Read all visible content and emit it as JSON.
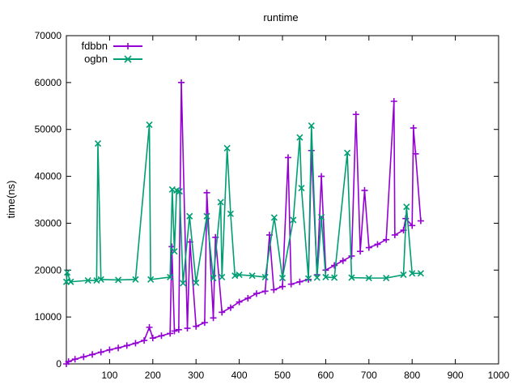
{
  "chart_data": {
    "type": "line",
    "title": "runtime",
    "xlabel": "",
    "ylabel": "time(ns)",
    "xlim": [
      0,
      1000
    ],
    "ylim": [
      0,
      70000
    ],
    "xticks": [
      100,
      200,
      300,
      400,
      500,
      600,
      700,
      800,
      900,
      1000
    ],
    "yticks": [
      0,
      10000,
      20000,
      30000,
      40000,
      50000,
      60000,
      70000
    ],
    "grid": false,
    "legend_position": "top-left",
    "series": [
      {
        "name": "fdbbn",
        "color": "#9400d3",
        "marker": "plus",
        "x": [
          0,
          5,
          20,
          40,
          60,
          80,
          100,
          120,
          140,
          160,
          180,
          192,
          200,
          220,
          240,
          244,
          250,
          260,
          266,
          280,
          286,
          300,
          320,
          325,
          340,
          345,
          360,
          380,
          400,
          420,
          440,
          460,
          470,
          480,
          500,
          513,
          520,
          540,
          560,
          567,
          580,
          590,
          600,
          620,
          640,
          660,
          670,
          680,
          690,
          700,
          720,
          740,
          758,
          760,
          780,
          785,
          800,
          803,
          808,
          820
        ],
        "y": [
          0,
          500,
          1000,
          1500,
          2000,
          2500,
          3000,
          3400,
          3900,
          4400,
          5000,
          7800,
          5500,
          6000,
          6500,
          25000,
          7000,
          7300,
          60000,
          7600,
          26000,
          8000,
          8800,
          36500,
          9800,
          27000,
          11000,
          12000,
          13200,
          14000,
          15000,
          15500,
          27500,
          15800,
          16500,
          44000,
          17000,
          17500,
          18000,
          45500,
          19000,
          40000,
          20000,
          21000,
          22000,
          23000,
          53200,
          24000,
          37000,
          24800,
          25500,
          26500,
          56000,
          27500,
          28500,
          31000,
          29500,
          50300,
          44800,
          30500
        ]
      },
      {
        "name": "ogbn",
        "color": "#009e73",
        "marker": "cross",
        "x": [
          0,
          2,
          10,
          50,
          70,
          73,
          80,
          120,
          160,
          192,
          195,
          240,
          245,
          250,
          255,
          262,
          270,
          285,
          300,
          325,
          340,
          357,
          360,
          372,
          380,
          390,
          400,
          430,
          460,
          481,
          500,
          525,
          540,
          544,
          560,
          567,
          580,
          590,
          600,
          620,
          650,
          660,
          700,
          740,
          780,
          787,
          800,
          820
        ],
        "y": [
          17500,
          19500,
          17500,
          17800,
          17800,
          47000,
          18000,
          17900,
          18000,
          51000,
          18000,
          18500,
          37200,
          24000,
          37000,
          36800,
          17200,
          31500,
          17300,
          31500,
          18300,
          34500,
          18500,
          46000,
          32000,
          18800,
          19000,
          18800,
          18500,
          31200,
          18300,
          30700,
          48300,
          37500,
          18200,
          50800,
          18400,
          31300,
          18500,
          18400,
          45000,
          18400,
          18300,
          18300,
          19000,
          33500,
          19300,
          19300
        ]
      }
    ]
  }
}
